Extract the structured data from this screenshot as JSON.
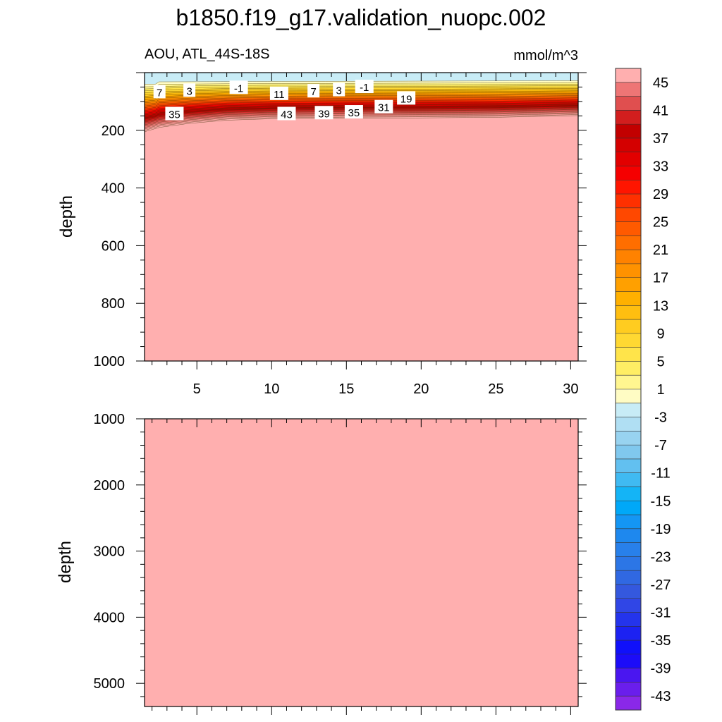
{
  "chart_data": {
    "type": "contour",
    "title": "b1850.f19_g17.validation_nuopc.002",
    "variable_label": "AOU, ATL_44S-18S",
    "units_label": "mmol/m^3",
    "upper_panel": {
      "ylabel": "depth",
      "xlim": [
        1.5,
        30.5
      ],
      "ylim": [
        0,
        1000
      ],
      "x_ticks": [
        "5",
        "10",
        "15",
        "20",
        "25",
        "30"
      ],
      "y_ticks": [
        "200",
        "400",
        "600",
        "800",
        "1000"
      ],
      "contour_labels": [
        {
          "text": "7",
          "x": 2.5,
          "depth": 67
        },
        {
          "text": "3",
          "x": 4.5,
          "depth": 62
        },
        {
          "text": "-1",
          "x": 7.8,
          "depth": 52
        },
        {
          "text": "11",
          "x": 10.5,
          "depth": 73
        },
        {
          "text": "7",
          "x": 12.8,
          "depth": 64
        },
        {
          "text": "3",
          "x": 14.5,
          "depth": 60
        },
        {
          "text": "-1",
          "x": 16.2,
          "depth": 49
        },
        {
          "text": "19",
          "x": 19.0,
          "depth": 89
        },
        {
          "text": "35",
          "x": 3.5,
          "depth": 143
        },
        {
          "text": "43",
          "x": 11.0,
          "depth": 143
        },
        {
          "text": "39",
          "x": 13.5,
          "depth": 140
        },
        {
          "text": "35",
          "x": 15.5,
          "depth": 137
        },
        {
          "text": "31",
          "x": 17.5,
          "depth": 119
        }
      ]
    },
    "lower_panel": {
      "ylabel": "depth",
      "xlim": [
        1.5,
        30.5
      ],
      "ylim": [
        1000,
        5350
      ],
      "y_ticks": [
        "1000",
        "2000",
        "3000",
        "4000",
        "5000"
      ]
    },
    "colorbar": {
      "labels": [
        "45",
        "41",
        "37",
        "33",
        "29",
        "25",
        "21",
        "17",
        "13",
        "9",
        "5",
        "1",
        "-3",
        "-7",
        "-11",
        "-15",
        "-19",
        "-23",
        "-27",
        "-31",
        "-35",
        "-39",
        "-43"
      ],
      "colors": [
        "#FFAFAF",
        "#EE7575",
        "#E04F4F",
        "#D21E1E",
        "#C20000",
        "#D40000",
        "#E20000",
        "#F50000",
        "#FF1500",
        "#FF3000",
        "#FF4800",
        "#FF5A00",
        "#FF6E00",
        "#FF8200",
        "#FF9200",
        "#FFA000",
        "#FFB000",
        "#FFBE10",
        "#FFCC20",
        "#FFD832",
        "#FFE44A",
        "#FFEE64",
        "#FFF690",
        "#FFFCC4",
        "#C8ECF6",
        "#B0DFF3",
        "#98D3F0",
        "#80C8EE",
        "#62C0F0",
        "#40BAF2",
        "#14B4F6",
        "#00A8F8",
        "#1496F4",
        "#1E88EE",
        "#2880EA",
        "#2C76E6",
        "#3068E2",
        "#3458DE",
        "#3046E6",
        "#2434EC",
        "#1C22F2",
        "#1010FA",
        "#1C0CF8",
        "#4A16F0",
        "#6A1EEC",
        "#8A28E8"
      ]
    }
  }
}
